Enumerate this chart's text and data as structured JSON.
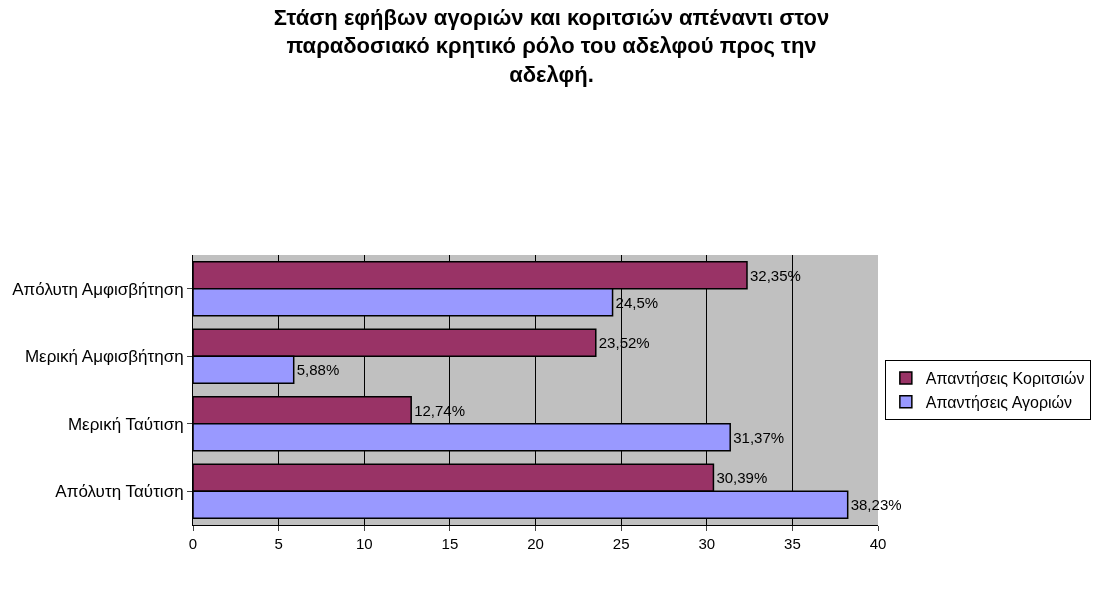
{
  "chart_data": {
    "type": "bar",
    "orientation": "horizontal",
    "title": "Στάση εφήβων αγοριών και κοριτσιών απέναντι στον παραδοσιακό κρητικό ρόλο του αδελφού προς την αδελφή.",
    "categories": [
      "Απόλυτη Αμφισβήτηση",
      "Μερική Αμφισβήτηση",
      "Μερική Ταύτιση",
      "Απόλυτη Ταύτιση"
    ],
    "series": [
      {
        "name": "Απαντήσεις Κοριτσιών",
        "color": "#993366",
        "values": [
          32.35,
          23.52,
          12.74,
          30.39
        ],
        "value_labels": [
          "32,35%",
          "23,52%",
          "12,74%",
          "30,39%"
        ]
      },
      {
        "name": "Απαντήσεις Αγοριών",
        "color": "#9999ff",
        "values": [
          24.5,
          5.88,
          31.37,
          38.23
        ],
        "value_labels": [
          "24,5%",
          "5,88%",
          "31,37%",
          "38,23%"
        ]
      }
    ],
    "xlim": [
      0,
      40
    ],
    "xticks": [
      0,
      5,
      10,
      15,
      20,
      25,
      30,
      35,
      40
    ],
    "grid": "x",
    "legend": "right"
  }
}
